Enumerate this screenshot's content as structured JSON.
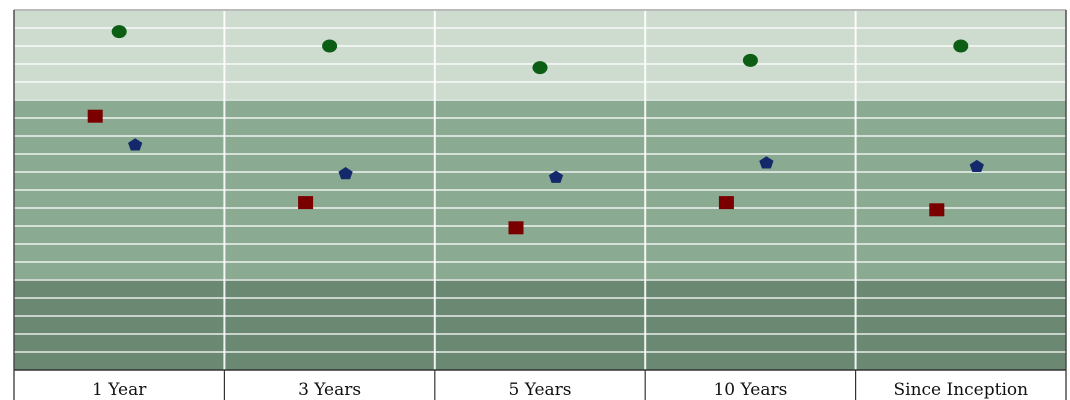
{
  "chart_data": {
    "type": "scatter",
    "categories": [
      "1 Year",
      "3 Years",
      "5 Years",
      "10 Years",
      "Since Inception"
    ],
    "title": "",
    "xlabel": "",
    "ylabel": "",
    "ylim": [
      0,
      100
    ],
    "grid": true,
    "band_colors": [
      "#cddccf",
      "#8aaa92",
      "#6b8872"
    ],
    "series": [
      {
        "marker": "square",
        "color": "#7a0000",
        "values": [
          70.5,
          46.5,
          39.5,
          46.5,
          44.5
        ]
      },
      {
        "marker": "circle",
        "color": "#0b5e14",
        "values": [
          94.0,
          90.0,
          84.0,
          86.0,
          90.0
        ]
      },
      {
        "marker": "pentagon",
        "color": "#13296b",
        "values": [
          62.5,
          54.5,
          53.5,
          57.5,
          56.5
        ]
      }
    ]
  }
}
